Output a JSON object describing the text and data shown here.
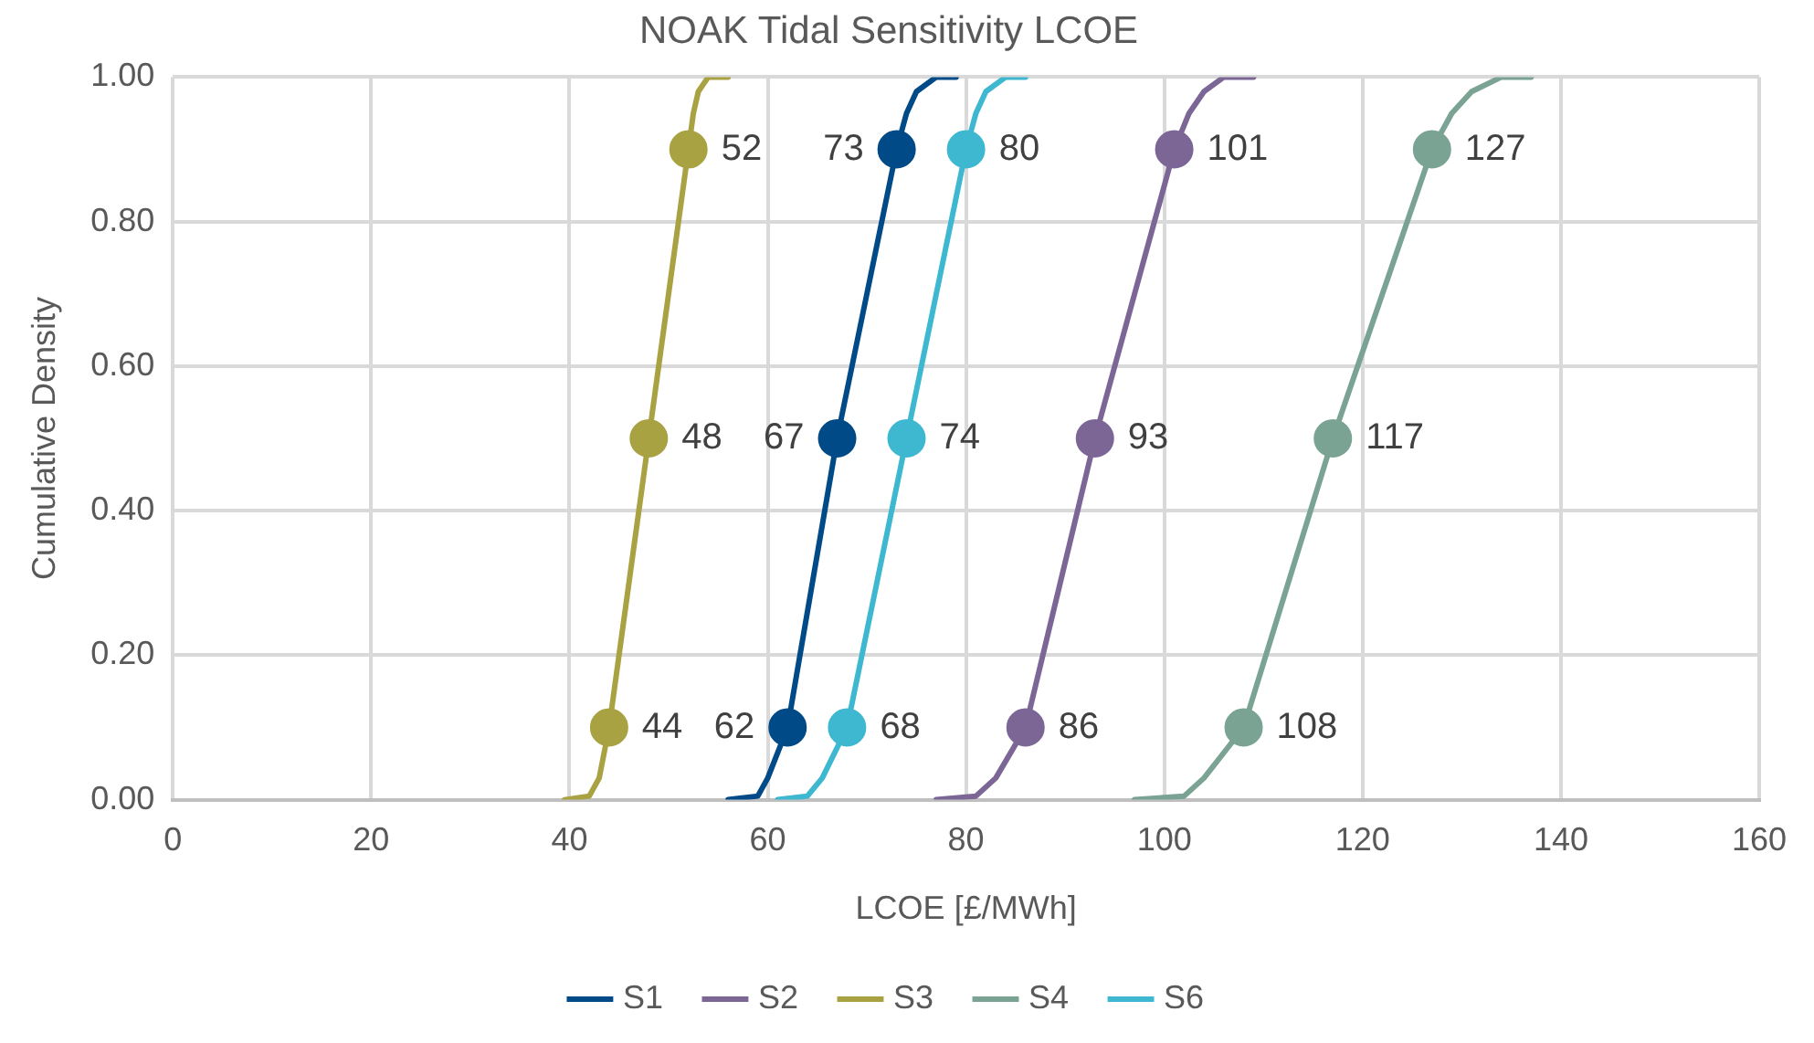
{
  "chart_data": {
    "type": "line",
    "title": "NOAK Tidal Sensitivity LCOE",
    "xlabel": "LCOE [£/MWh]",
    "ylabel": "Cumulative Density",
    "xlim": [
      0,
      160
    ],
    "xticks": [
      0,
      20,
      40,
      60,
      80,
      100,
      120,
      140,
      160
    ],
    "ylim": [
      0,
      1
    ],
    "yticks": [
      {
        "value": 0,
        "label": "0.00"
      },
      {
        "value": 0.2,
        "label": "0.20"
      },
      {
        "value": 0.4,
        "label": "0.40"
      },
      {
        "value": 0.6,
        "label": "0.60"
      },
      {
        "value": 0.8,
        "label": "0.80"
      },
      {
        "value": 1,
        "label": "1.00"
      }
    ],
    "grid": true,
    "legend": "bottom",
    "marker": "none",
    "line_style": "solid",
    "series": [
      {
        "name": "S1",
        "color": "#004a87",
        "x": [
          56,
          59,
          60,
          62,
          64.5,
          67,
          70,
          73,
          74,
          75,
          77,
          79
        ],
        "values": [
          0,
          0.005,
          0.03,
          0.1,
          0.3,
          0.5,
          0.7,
          0.9,
          0.95,
          0.98,
          1,
          1
        ]
      },
      {
        "name": "S2",
        "color": "#7b6696",
        "x": [
          77,
          81,
          83,
          86,
          89.5,
          93,
          97,
          101,
          102.5,
          104,
          106,
          109
        ],
        "values": [
          0,
          0.005,
          0.03,
          0.1,
          0.3,
          0.5,
          0.7,
          0.9,
          0.95,
          0.98,
          1,
          1
        ]
      },
      {
        "name": "S3",
        "color": "#a9a242",
        "x": [
          39.5,
          42,
          43,
          44,
          46,
          48,
          50,
          52,
          52.5,
          53,
          54,
          56
        ],
        "values": [
          0,
          0.005,
          0.03,
          0.1,
          0.3,
          0.5,
          0.7,
          0.9,
          0.95,
          0.98,
          1,
          1
        ]
      },
      {
        "name": "S4",
        "color": "#7aa393",
        "x": [
          97,
          102,
          104,
          108,
          112.5,
          117,
          122,
          127,
          129,
          131,
          134,
          137
        ],
        "values": [
          0,
          0.005,
          0.03,
          0.1,
          0.3,
          0.5,
          0.7,
          0.9,
          0.95,
          0.98,
          1,
          1
        ]
      },
      {
        "name": "S6",
        "color": "#3db8d0",
        "x": [
          61,
          64,
          65.5,
          68,
          71,
          74,
          77,
          80,
          81,
          82,
          84,
          86
        ],
        "values": [
          0,
          0.005,
          0.03,
          0.1,
          0.3,
          0.5,
          0.7,
          0.9,
          0.95,
          0.98,
          1,
          1
        ]
      },
      {
        "type": "scatter",
        "marker": "circle",
        "color": "#004a87",
        "x": [
          62,
          67,
          73
        ],
        "values": [
          0.1,
          0.5,
          0.9
        ]
      },
      {
        "type": "scatter",
        "marker": "circle",
        "color": "#7b6696",
        "x": [
          86,
          93,
          101
        ],
        "values": [
          0.1,
          0.5,
          0.9
        ]
      },
      {
        "type": "scatter",
        "marker": "circle",
        "color": "#a9a242",
        "x": [
          44,
          48,
          52
        ],
        "values": [
          0.1,
          0.5,
          0.9
        ]
      },
      {
        "type": "scatter",
        "marker": "circle",
        "color": "#7aa393",
        "x": [
          108,
          117,
          127
        ],
        "values": [
          0.1,
          0.5,
          0.9
        ]
      },
      {
        "type": "scatter",
        "marker": "circle",
        "color": "#3db8d0",
        "x": [
          68,
          74,
          80
        ],
        "values": [
          0.1,
          0.5,
          0.9
        ]
      }
    ],
    "annotations": [
      {
        "text": "62",
        "x": 62,
        "y": 0.1
      },
      {
        "text": "67",
        "x": 67,
        "y": 0.5
      },
      {
        "text": "73",
        "x": 73,
        "y": 0.9
      },
      {
        "text": "86",
        "x": 86,
        "y": 0.1
      },
      {
        "text": "93",
        "x": 93,
        "y": 0.5
      },
      {
        "text": "101",
        "x": 101,
        "y": 0.9
      },
      {
        "text": "44",
        "x": 44,
        "y": 0.1
      },
      {
        "text": "48",
        "x": 48,
        "y": 0.5
      },
      {
        "text": "52",
        "x": 52,
        "y": 0.9
      },
      {
        "text": "108",
        "x": 108,
        "y": 0.1
      },
      {
        "text": "117",
        "x": 117,
        "y": 0.5
      },
      {
        "text": "127",
        "x": 127,
        "y": 0.9
      },
      {
        "text": "68",
        "x": 68,
        "y": 0.1
      },
      {
        "text": "74",
        "x": 74,
        "y": 0.5
      },
      {
        "text": "80",
        "x": 80,
        "y": 0.9
      }
    ]
  }
}
